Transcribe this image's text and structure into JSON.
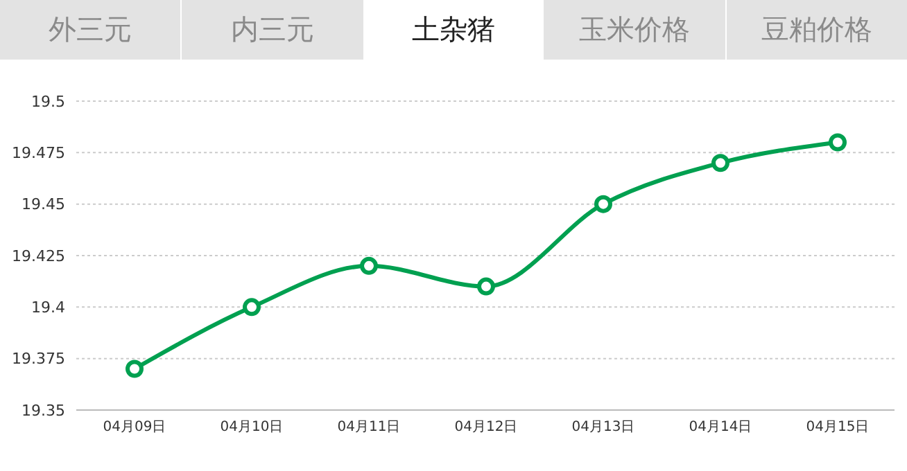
{
  "chart_data": {
    "type": "line",
    "title": "土杂猪",
    "annotations": [
      "外三元",
      "内三元",
      "玉米价格",
      "豆粕价格"
    ],
    "categories": [
      "04月09日",
      "04月10日",
      "04月11日",
      "04月12日",
      "04月13日",
      "04月14日",
      "04月15日"
    ],
    "series": [
      {
        "color": "#00a050",
        "values": [
          19.37,
          19.4,
          19.42,
          19.41,
          19.45,
          19.47,
          19.48
        ]
      }
    ],
    "ylim": [
      19.35,
      19.5
    ],
    "yticks": [
      19.35,
      19.375,
      19.4,
      19.425,
      19.45,
      19.475,
      19.5
    ],
    "grid": "y",
    "marker": "circle",
    "line_style": "solid"
  }
}
